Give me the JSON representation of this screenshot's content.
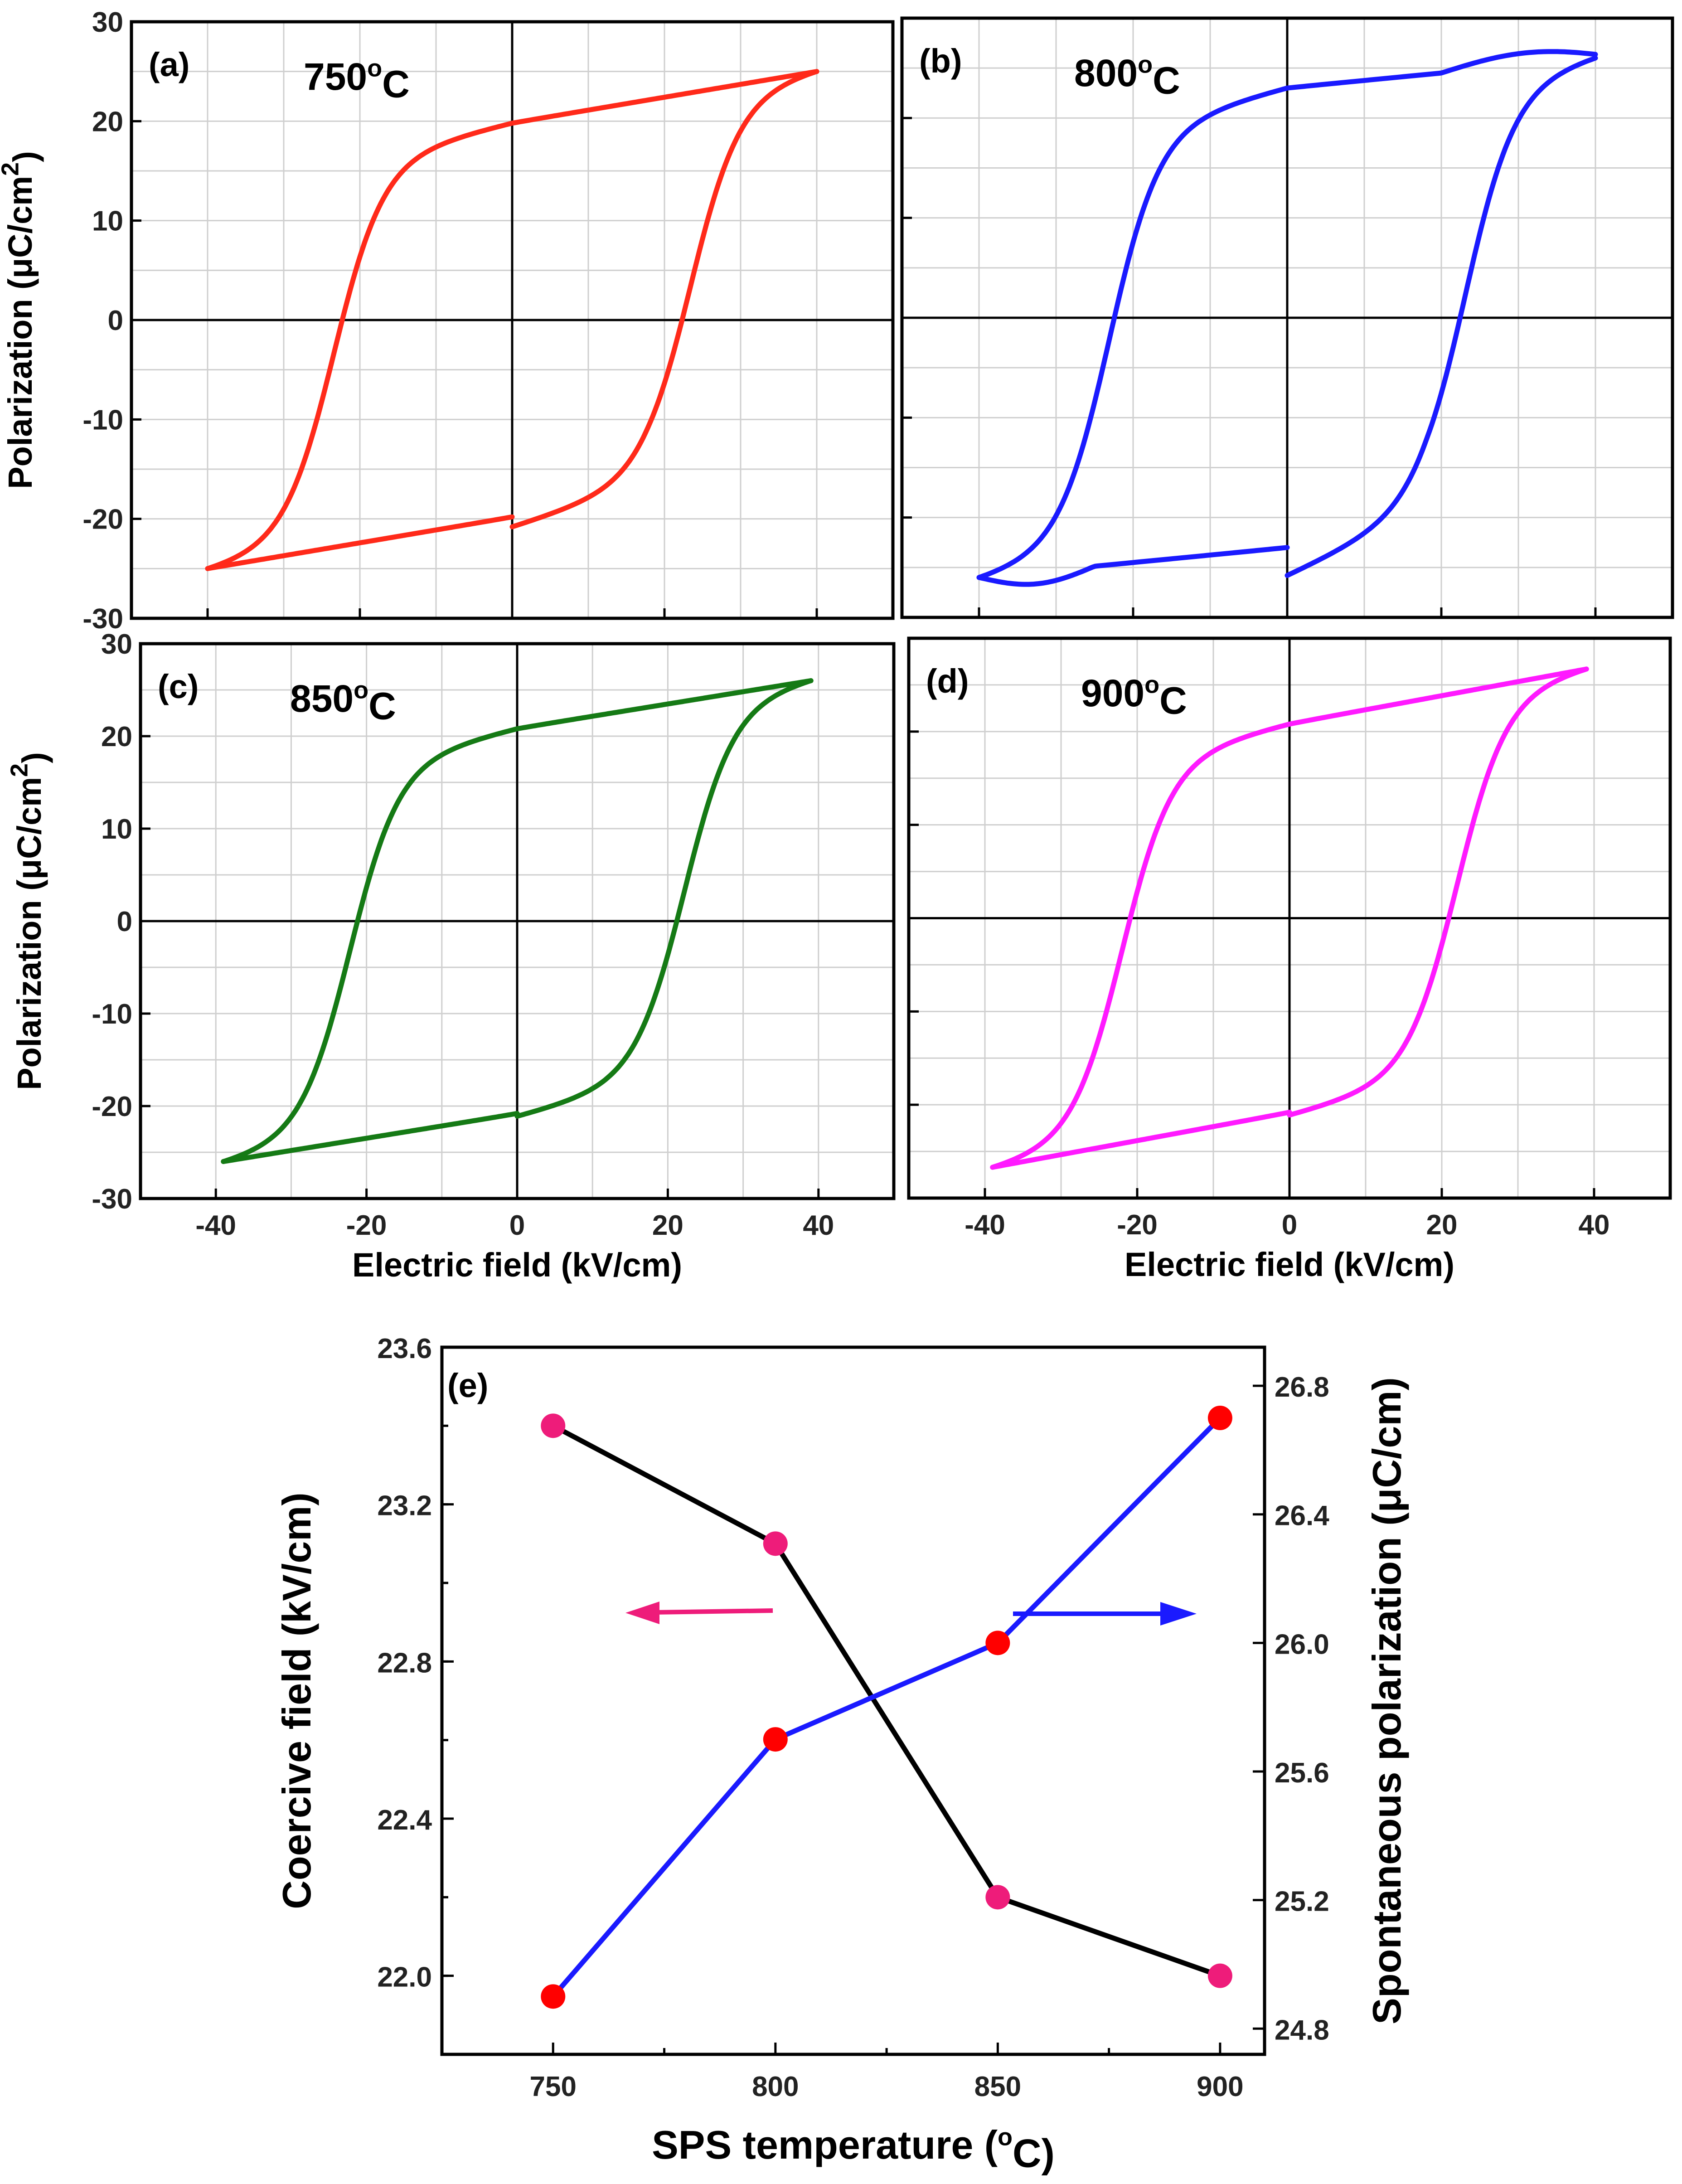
{
  "chart_data": [
    {
      "id": "a",
      "type": "line",
      "panel_label": "(a)",
      "temperature_label": "750",
      "temperature_unit": "oC",
      "color": "#ff2a1a",
      "xlabel": "",
      "ylabel": "Polarization (μC/cm2)",
      "xlim": [
        -50,
        50
      ],
      "ylim": [
        -30,
        30
      ],
      "xticks": [
        -40,
        -20,
        0,
        20,
        40
      ],
      "yticks": [
        -30,
        -20,
        -10,
        0,
        10,
        20,
        30
      ],
      "xtick_labels_shown": false,
      "ytick_labels_shown": true,
      "loop": {
        "Emax": 40,
        "Pmax": 25.0,
        "Pr": 19.8,
        "Ec": 23.4,
        "Pr_start": 19.4,
        "Pr_start_end": 18.8,
        "Pmin_excursion": 0
      }
    },
    {
      "id": "b",
      "type": "line",
      "panel_label": "(b)",
      "temperature_label": "800",
      "temperature_unit": "oC",
      "color": "#1a1aff",
      "xlabel": "",
      "ylabel": "",
      "xlim": [
        -50,
        50
      ],
      "ylim": [
        -30,
        30
      ],
      "xticks": [
        -40,
        -20,
        0,
        20,
        40
      ],
      "yticks": [
        -30,
        -20,
        -10,
        0,
        10,
        20,
        30
      ],
      "xtick_labels_shown": false,
      "ytick_labels_shown": false,
      "loop": {
        "Emax": 40,
        "Pmax": 26.0,
        "Pr": 23.0,
        "Ec": 23.1,
        "Pr_start": 22.3,
        "Pr_start_end": 20.2,
        "Pmin_excursion": 1.2
      }
    },
    {
      "id": "c",
      "type": "line",
      "panel_label": "(c)",
      "temperature_label": "850",
      "temperature_unit": "oC",
      "color": "#157a15",
      "xlabel": "Electric field (kV/cm)",
      "ylabel": "Polarization (μC/cm2)",
      "xlim": [
        -50,
        50
      ],
      "ylim": [
        -30,
        30
      ],
      "xticks": [
        -40,
        -20,
        0,
        20,
        40
      ],
      "yticks": [
        -30,
        -20,
        -10,
        0,
        10,
        20,
        30
      ],
      "xtick_labels_shown": true,
      "ytick_labels_shown": true,
      "loop": {
        "Emax": 39,
        "Pmax": 26.0,
        "Pr": 20.8,
        "Ec": 22.2,
        "Pr_start": 20.8,
        "Pr_start_end": 20.5,
        "Pmin_excursion": 0
      }
    },
    {
      "id": "d",
      "type": "line",
      "panel_label": "(d)",
      "temperature_label": "900",
      "temperature_unit": "oC",
      "color": "#ff1aff",
      "xlabel": "Electric field (kV/cm)",
      "ylabel": "",
      "xlim": [
        -50,
        50
      ],
      "ylim": [
        -30,
        30
      ],
      "xticks": [
        -40,
        -20,
        0,
        20,
        40
      ],
      "yticks": [
        -30,
        -20,
        -10,
        0,
        10,
        20,
        30
      ],
      "xtick_labels_shown": true,
      "ytick_labels_shown": false,
      "loop": {
        "Emax": 39,
        "Pmax": 26.7,
        "Pr": 20.8,
        "Ec": 22.0,
        "Pr_start": 20.7,
        "Pr_start_end": 20.5,
        "Pmin_excursion": 0
      }
    },
    {
      "id": "e",
      "type": "line",
      "panel_label": "(e)",
      "xlabel": "SPS temperature (oC)",
      "ylabel": "Coercive field (kV/cm)",
      "ylabel_right": "Spontaneous polarization (μC/cm)",
      "x": [
        750,
        800,
        850,
        900
      ],
      "xlim": [
        725,
        910
      ],
      "xticks": [
        750,
        800,
        850,
        900
      ],
      "ylim": [
        21.8,
        23.6
      ],
      "yticks": [
        22.0,
        22.4,
        22.8,
        23.2,
        23.6
      ],
      "ytick_labels": [
        "22.0",
        "22.4",
        "22.8",
        "23.2",
        "23.6"
      ],
      "ylim_right": [
        24.72,
        26.92
      ],
      "yticks_right": [
        24.8,
        25.2,
        25.6,
        26.0,
        26.4,
        26.8
      ],
      "ytick_labels_right": [
        "24.8",
        "25.2",
        "25.6",
        "26.0",
        "26.4",
        "26.8"
      ],
      "series": [
        {
          "name": "Coercive field",
          "axis": "left",
          "values": [
            23.4,
            23.1,
            22.2,
            22.0
          ],
          "line_color": "#000000",
          "marker_color": "#ee1c7a"
        },
        {
          "name": "Spontaneous polarization",
          "axis": "right",
          "values": [
            24.9,
            25.7,
            26.0,
            26.7
          ],
          "line_color": "#1a1aff",
          "marker_color": "#ff0000"
        }
      ],
      "arrows": [
        {
          "direction": "left",
          "color": "#ee1c7a",
          "points_to": "left axis"
        },
        {
          "direction": "right",
          "color": "#1a1aff",
          "points_to": "right axis"
        }
      ]
    }
  ]
}
